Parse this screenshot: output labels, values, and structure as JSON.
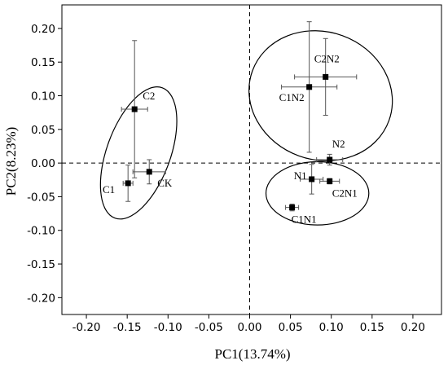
{
  "chart_data": {
    "type": "scatter",
    "xlabel": "PC1(13.74%)",
    "ylabel": "PC2(8.23%)",
    "xlim": [
      -0.23,
      0.235
    ],
    "ylim": [
      -0.225,
      0.235
    ],
    "x_ticks": [
      -0.2,
      -0.15,
      -0.1,
      -0.05,
      0.0,
      0.05,
      0.1,
      0.15,
      0.2
    ],
    "x_tick_labels": [
      "-0.20",
      "-0.15",
      "-0.10",
      "-0.05",
      "0.00",
      "0.05",
      "0.10",
      "0.15",
      "0.20"
    ],
    "y_ticks": [
      -0.2,
      -0.15,
      -0.1,
      -0.05,
      0.0,
      0.05,
      0.1,
      0.15,
      0.2
    ],
    "y_tick_labels": [
      "-0.20",
      "-0.15",
      "-0.10",
      "-0.05",
      "0.00",
      "0.05",
      "0.10",
      "0.15",
      "0.20"
    ],
    "reference_lines": {
      "x": 0,
      "y": 0,
      "style": "dashed"
    },
    "points": [
      {
        "label": "C2",
        "x": -0.141,
        "y": 0.08,
        "xerr": 0.016,
        "yerr": 0.102
      },
      {
        "label": "C1",
        "x": -0.149,
        "y": -0.03,
        "xerr": 0.006,
        "yerr": 0.027
      },
      {
        "label": "CK",
        "x": -0.123,
        "y": -0.013,
        "xerr": 0.02,
        "yerr": 0.018
      },
      {
        "label": "C2N2",
        "x": 0.093,
        "y": 0.128,
        "xerr": 0.038,
        "yerr": 0.057
      },
      {
        "label": "C1N2",
        "x": 0.073,
        "y": 0.113,
        "xerr": 0.034,
        "yerr": 0.097
      },
      {
        "label": "N2",
        "x": 0.098,
        "y": 0.005,
        "xerr": 0.016,
        "yerr": 0.008
      },
      {
        "label": "N1",
        "x": 0.076,
        "y": -0.024,
        "xerr": 0.014,
        "yerr": 0.022
      },
      {
        "label": "C2N1",
        "x": 0.098,
        "y": -0.027,
        "xerr": 0.012,
        "yerr": 0.004
      },
      {
        "label": "C1N1",
        "x": 0.052,
        "y": -0.066,
        "xerr": 0.008,
        "yerr": 0.005
      }
    ],
    "ellipses": [
      {
        "group": "C",
        "cx": -0.136,
        "cy": 0.015,
        "rx": 0.039,
        "ry": 0.103,
        "angle_deg": 20
      },
      {
        "group": "N2",
        "cx": 0.087,
        "cy": 0.1,
        "rx": 0.089,
        "ry": 0.095,
        "angle_deg": 20
      },
      {
        "group": "N1",
        "cx": 0.083,
        "cy": -0.045,
        "rx": 0.063,
        "ry": 0.047,
        "angle_deg": 0
      }
    ],
    "grid": false,
    "legend": "none"
  }
}
